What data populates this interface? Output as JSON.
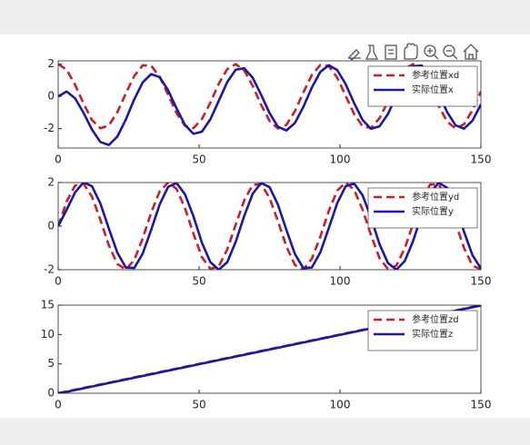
{
  "chart_data": [
    {
      "type": "line",
      "x": [
        0,
        3,
        6,
        9,
        12,
        15,
        18,
        21,
        24,
        27,
        30,
        33,
        36,
        39,
        42,
        45,
        48,
        51,
        54,
        57,
        60,
        63,
        66,
        69,
        72,
        75,
        78,
        81,
        84,
        87,
        90,
        93,
        96,
        99,
        102,
        105,
        108,
        111,
        114,
        117,
        120,
        123,
        126,
        129,
        132,
        135,
        138,
        141,
        144,
        147,
        150
      ],
      "series": [
        {
          "name": "参考位置xd",
          "color": "#c8202a",
          "dash": true,
          "values": [
            2,
            1.65,
            0.72,
            -0.45,
            -1.47,
            -1.98,
            -1.79,
            -0.98,
            0.18,
            1.27,
            1.92,
            1.9,
            1.22,
            0.11,
            -1.04,
            -1.82,
            -1.97,
            -1.41,
            -0.39,
            0.79,
            1.69,
            2.0,
            1.61,
            0.66,
            -0.52,
            -1.52,
            -1.99,
            -1.76,
            -0.92,
            0.24,
            1.32,
            1.94,
            1.88,
            1.16,
            0.04,
            -1.09,
            -1.85,
            -1.96,
            -1.36,
            -0.32,
            0.85,
            1.72,
            2.0,
            1.57,
            0.6,
            -0.58,
            -1.56,
            -1.99,
            -1.73,
            -0.86,
            0.31
          ]
        },
        {
          "name": "实际位置x",
          "color": "#1c17a6",
          "dash": false,
          "values": [
            0,
            0.3,
            -0.12,
            -1.02,
            -2.06,
            -2.83,
            -3.01,
            -2.49,
            -1.44,
            -0.18,
            0.87,
            1.38,
            1.19,
            0.38,
            -0.74,
            -1.77,
            -2.32,
            -2.19,
            -1.42,
            -0.27,
            0.89,
            1.65,
            1.74,
            1.16,
            0.1,
            -1.04,
            -1.89,
            -2.11,
            -1.65,
            -0.65,
            0.54,
            1.51,
            1.93,
            1.63,
            0.76,
            -0.41,
            -1.46,
            -2.01,
            -1.86,
            -1.1,
            0.05,
            1.16,
            1.87,
            1.91,
            1.28,
            0.19,
            -0.97,
            -1.79,
            -2.0,
            -1.51,
            -0.5
          ]
        }
      ],
      "xlim": [
        0,
        150
      ],
      "xticks": [
        0,
        50,
        100,
        150
      ],
      "ylim": [
        -3.2,
        2.2
      ],
      "yticks": [
        -2,
        0,
        2
      ],
      "legend": "upper right",
      "grid": false
    },
    {
      "type": "line",
      "x": [
        0,
        3,
        6,
        9,
        12,
        15,
        18,
        21,
        24,
        27,
        30,
        33,
        36,
        39,
        42,
        45,
        48,
        51,
        54,
        57,
        60,
        63,
        66,
        69,
        72,
        75,
        78,
        81,
        84,
        87,
        90,
        93,
        96,
        99,
        102,
        105,
        108,
        111,
        114,
        117,
        120,
        123,
        126,
        129,
        132,
        135,
        138,
        141,
        144,
        147,
        150
      ],
      "series": [
        {
          "name": "参考位置yd",
          "color": "#c8202a",
          "dash": true,
          "values": [
            0,
            1.13,
            1.86,
            1.95,
            1.35,
            0.28,
            -0.89,
            -1.74,
            -1.99,
            -1.55,
            -0.56,
            0.62,
            1.59,
            2.0,
            1.71,
            0.82,
            -0.35,
            -1.42,
            -1.96,
            -1.84,
            -1.07,
            0.07,
            1.18,
            1.89,
            1.93,
            1.3,
            0.22,
            -0.94,
            -1.78,
            -1.99,
            -1.5,
            -0.49,
            0.69,
            1.63,
            2.0,
            1.67,
            0.76,
            -0.41,
            -1.46,
            -1.97,
            -1.81,
            -1.01,
            0.13,
            1.24,
            1.91,
            1.91,
            1.25,
            0.15,
            -1.0,
            -1.81,
            -1.98
          ]
        },
        {
          "name": "实际位置y",
          "color": "#1c17a6",
          "dash": false,
          "values": [
            0,
            0.75,
            1.55,
            2.01,
            1.83,
            1.03,
            -0.12,
            -1.22,
            -1.9,
            -1.92,
            -1.26,
            -0.17,
            0.99,
            1.8,
            1.98,
            1.46,
            0.45,
            -0.76,
            -1.65,
            -2.0,
            -1.65,
            -0.72,
            0.46,
            1.48,
            1.98,
            1.79,
            0.98,
            -0.18,
            -1.28,
            -1.93,
            -1.9,
            -1.21,
            -0.1,
            1.05,
            1.83,
            1.96,
            1.42,
            0.39,
            -0.82,
            -1.69,
            -2.0,
            -1.6,
            -0.66,
            0.53,
            1.53,
            1.99,
            1.76,
            0.92,
            -0.25,
            -1.33,
            -1.94
          ]
        }
      ],
      "xlim": [
        0,
        150
      ],
      "xticks": [
        0,
        50,
        100,
        150
      ],
      "ylim": [
        -2,
        2
      ],
      "yticks": [
        -2,
        0,
        2
      ],
      "legend": "upper right",
      "grid": false
    },
    {
      "type": "line",
      "x": [
        0,
        3,
        6,
        9,
        12,
        15,
        18,
        21,
        24,
        27,
        30,
        33,
        36,
        39,
        42,
        45,
        48,
        51,
        54,
        57,
        60,
        63,
        66,
        69,
        72,
        75,
        78,
        81,
        84,
        87,
        90,
        93,
        96,
        99,
        102,
        105,
        108,
        111,
        114,
        117,
        120,
        123,
        126,
        129,
        132,
        135,
        138,
        141,
        144,
        147,
        150
      ],
      "series": [
        {
          "name": "参考位置zd",
          "color": "#c8202a",
          "dash": true,
          "values": [
            0,
            0.3,
            0.6,
            0.9,
            1.2,
            1.5,
            1.8,
            2.1,
            2.4,
            2.7,
            3.0,
            3.3,
            3.6,
            3.9,
            4.2,
            4.5,
            4.8,
            5.1,
            5.4,
            5.7,
            6.0,
            6.3,
            6.6,
            6.9,
            7.2,
            7.5,
            7.8,
            8.1,
            8.4,
            8.7,
            9.0,
            9.3,
            9.6,
            9.9,
            10.2,
            10.5,
            10.8,
            11.1,
            11.4,
            11.7,
            12.0,
            12.3,
            12.6,
            12.9,
            13.2,
            13.5,
            13.8,
            14.1,
            14.4,
            14.7,
            15.0
          ]
        },
        {
          "name": "实际位置z",
          "color": "#1c17a6",
          "dash": false,
          "values": [
            0,
            0.24,
            0.54,
            0.84,
            1.14,
            1.44,
            1.74,
            2.04,
            2.34,
            2.64,
            2.94,
            3.24,
            3.54,
            3.84,
            4.14,
            4.44,
            4.74,
            5.04,
            5.34,
            5.64,
            5.94,
            6.24,
            6.54,
            6.84,
            7.14,
            7.44,
            7.74,
            8.04,
            8.34,
            8.64,
            8.94,
            9.24,
            9.54,
            9.84,
            10.14,
            10.44,
            10.74,
            11.04,
            11.34,
            11.64,
            11.94,
            12.24,
            12.54,
            12.84,
            13.14,
            13.44,
            13.74,
            14.04,
            14.34,
            14.64,
            14.94
          ]
        }
      ],
      "xlim": [
        0,
        150
      ],
      "xticks": [
        0,
        50,
        100,
        150
      ],
      "ylim": [
        0,
        15
      ],
      "yticks": [
        0,
        5,
        10,
        15
      ],
      "legend": "upper right",
      "grid": false
    }
  ]
}
